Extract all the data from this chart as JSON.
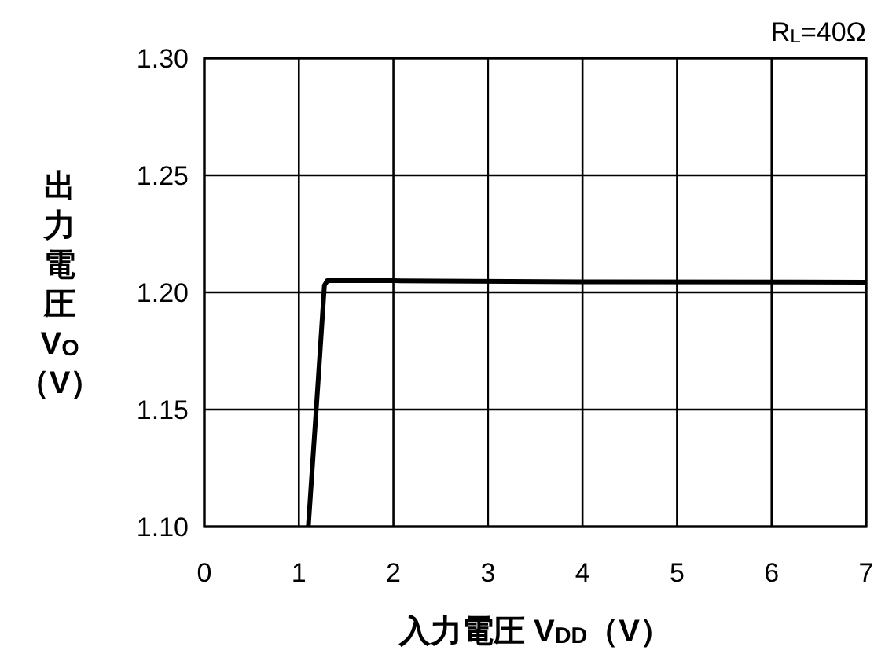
{
  "chart_data": {
    "type": "line",
    "xlabel": "入力電圧 V$_{DD}$（V）",
    "ylabel": "出力電圧V$_{O}$（V）",
    "annotations": [
      "R$_{L}$=40Ω"
    ],
    "xlim": [
      0,
      7
    ],
    "ylim": [
      1.1,
      1.3
    ],
    "xticks": [
      0,
      1,
      2,
      3,
      4,
      5,
      6,
      7
    ],
    "yticks": [
      {
        "value": 1.1,
        "label": "1.10"
      },
      {
        "value": 1.15,
        "label": "1.15"
      },
      {
        "value": 1.2,
        "label": "1.20"
      },
      {
        "value": 1.25,
        "label": "1.25"
      },
      {
        "value": 1.3,
        "label": "1.30"
      }
    ],
    "grid": true,
    "line_style": "solid",
    "marker": "none",
    "series": [
      {
        "color": "#000000",
        "x": [
          1.1,
          1.2,
          1.27,
          1.3,
          1.4,
          2,
          4,
          7
        ],
        "values": [
          1.1,
          1.16,
          1.203,
          1.205,
          1.205,
          1.205,
          1.2045,
          1.2044
        ]
      }
    ]
  }
}
